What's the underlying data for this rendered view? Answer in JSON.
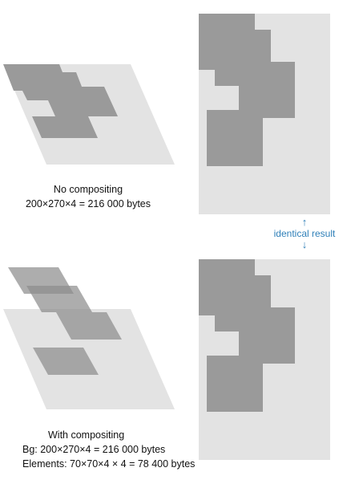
{
  "no_compositing": {
    "title": "No compositing",
    "size": "200×270×4 = 216 000 bytes"
  },
  "with_compositing": {
    "title": "With compositing",
    "bg": "Bg: 200×270×4 = 216 000 bytes",
    "elements": "Elements: 70×70×4 × 4 = 78 400 bytes"
  },
  "identical": {
    "label": "identical result",
    "up_arrow": "↑",
    "down_arrow": "↓"
  },
  "colors": {
    "background_light": "#e3e3e3",
    "element_dark": "#9a9a9a",
    "element_translucent": "#8e8e8e",
    "accent_blue": "#2e7fb8"
  }
}
